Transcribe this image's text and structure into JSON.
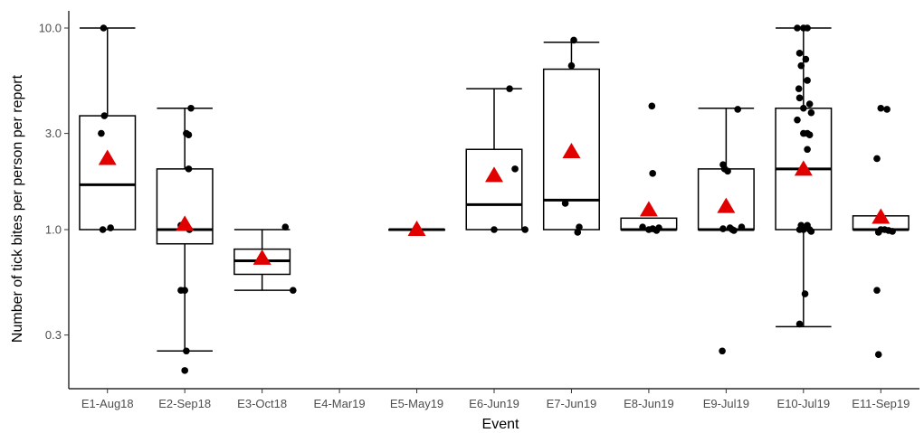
{
  "chart_data": {
    "type": "box",
    "xlabel": "Event",
    "ylabel": "Number of tick bites per person per report",
    "y_scale": "log10",
    "ylim": [
      0.2,
      12
    ],
    "y_ticks": [
      0.3,
      1.0,
      3.0,
      10.0
    ],
    "y_tick_labels": [
      "0.3",
      "1.0",
      "3.0",
      "10.0"
    ],
    "grid": false,
    "colors": {
      "box": "#000000",
      "points": "#000000",
      "mean_marker": "#e00000"
    },
    "categories": [
      "E1-Aug18",
      "E2-Sep18",
      "E3-Oct18",
      "E4-Mar19",
      "E5-May19",
      "E6-Jun19",
      "E7-Jun19",
      "E8-Jun19",
      "E9-Jul19",
      "E10-Jul19",
      "E11-Sep19"
    ],
    "boxes": [
      {
        "category": "E1-Aug18",
        "whisker_low": 1.0,
        "q1": 1.0,
        "median": 1.67,
        "q3": 3.67,
        "whisker_high": 10.0,
        "mean": 2.25,
        "points": [
          [
            -0.05,
            10.0
          ],
          [
            -0.04,
            3.67
          ],
          [
            -0.08,
            3.0
          ],
          [
            -0.06,
            1.0
          ],
          [
            0.04,
            1.02
          ]
        ]
      },
      {
        "category": "E2-Sep18",
        "whisker_low": 0.25,
        "q1": 0.85,
        "median": 1.0,
        "q3": 2.0,
        "whisker_high": 4.0,
        "mean": 1.06,
        "points": [
          [
            0.08,
            4.0
          ],
          [
            0.02,
            3.0
          ],
          [
            0.05,
            2.95
          ],
          [
            0.05,
            2.0
          ],
          [
            -0.05,
            1.05
          ],
          [
            0.02,
            1.05
          ],
          [
            0.06,
            1.0
          ],
          [
            -0.05,
            0.5
          ],
          [
            0.0,
            0.5
          ],
          [
            0.02,
            0.25
          ],
          [
            0.0,
            0.2
          ]
        ]
      },
      {
        "category": "E3-Oct18",
        "whisker_low": 0.5,
        "q1": 0.6,
        "median": 0.7,
        "q3": 0.8,
        "whisker_high": 1.0,
        "mean": 0.72,
        "points": [
          [
            0.3,
            1.03
          ],
          [
            0.4,
            0.5
          ]
        ]
      },
      {
        "category": "E4-Mar19"
      },
      {
        "category": "E5-May19",
        "whisker_low": 1.0,
        "q1": 1.0,
        "median": 1.0,
        "q3": 1.0,
        "whisker_high": 1.0,
        "mean": 1.0,
        "points": []
      },
      {
        "category": "E6-Jun19",
        "whisker_low": 1.0,
        "q1": 1.0,
        "median": 1.33,
        "q3": 2.5,
        "whisker_high": 5.0,
        "mean": 1.85,
        "points": [
          [
            0.2,
            5.0
          ],
          [
            0.27,
            2.0
          ],
          [
            0.0,
            1.0
          ],
          [
            0.4,
            1.0
          ]
        ]
      },
      {
        "category": "E7-Jun19",
        "whisker_low": 1.0,
        "q1": 1.0,
        "median": 1.4,
        "q3": 6.25,
        "whisker_high": 8.5,
        "mean": 2.43,
        "points": [
          [
            0.03,
            8.7
          ],
          [
            0.0,
            6.5
          ],
          [
            -0.08,
            1.35
          ],
          [
            0.1,
            1.03
          ],
          [
            0.08,
            0.97
          ]
        ]
      },
      {
        "category": "E8-Jun19",
        "whisker_low": 1.0,
        "q1": 1.0,
        "median": 1.0,
        "q3": 1.14,
        "whisker_high": 1.14,
        "mean": 1.25,
        "points": [
          [
            0.04,
            4.1
          ],
          [
            0.05,
            1.9
          ],
          [
            -0.08,
            1.03
          ],
          [
            0.0,
            1.0
          ],
          [
            0.05,
            1.01
          ],
          [
            0.1,
            0.99
          ],
          [
            0.13,
            1.02
          ]
        ]
      },
      {
        "category": "E9-Jul19",
        "whisker_low": 1.0,
        "q1": 1.0,
        "median": 1.0,
        "q3": 2.0,
        "whisker_high": 4.0,
        "mean": 1.3,
        "points": [
          [
            0.15,
            3.95
          ],
          [
            -0.04,
            2.1
          ],
          [
            -0.02,
            2.0
          ],
          [
            0.02,
            1.95
          ],
          [
            0.05,
            1.02
          ],
          [
            0.1,
            0.99
          ],
          [
            0.2,
            1.03
          ],
          [
            -0.04,
            1.01
          ],
          [
            0.08,
            1.0
          ],
          [
            -0.05,
            0.25
          ]
        ]
      },
      {
        "category": "E10-Jul19",
        "whisker_low": 0.33,
        "q1": 1.0,
        "median": 2.0,
        "q3": 4.0,
        "whisker_high": 10.0,
        "mean": 1.99,
        "points": [
          [
            -0.08,
            10.0
          ],
          [
            0.0,
            10.0
          ],
          [
            0.05,
            10.0
          ],
          [
            -0.05,
            7.5
          ],
          [
            0.03,
            7.0
          ],
          [
            -0.03,
            6.5
          ],
          [
            0.05,
            5.5
          ],
          [
            -0.06,
            5.0
          ],
          [
            -0.05,
            4.5
          ],
          [
            0.08,
            4.2
          ],
          [
            0.0,
            4.0
          ],
          [
            0.1,
            3.8
          ],
          [
            -0.08,
            3.5
          ],
          [
            0.0,
            3.0
          ],
          [
            0.05,
            3.0
          ],
          [
            0.08,
            2.95
          ],
          [
            0.0,
            2.0
          ],
          [
            0.05,
            2.5
          ],
          [
            -0.03,
            1.05
          ],
          [
            0.05,
            1.05
          ],
          [
            0.0,
            1.0
          ],
          [
            0.08,
            1.0
          ],
          [
            -0.05,
            1.0
          ],
          [
            0.1,
            0.98
          ],
          [
            0.02,
            0.48
          ],
          [
            -0.05,
            0.34
          ]
        ]
      },
      {
        "category": "E11-Sep19",
        "whisker_low": 1.0,
        "q1": 1.0,
        "median": 1.0,
        "q3": 1.17,
        "whisker_high": 1.17,
        "mean": 1.15,
        "points": [
          [
            0.0,
            4.0
          ],
          [
            0.08,
            3.95
          ],
          [
            -0.05,
            2.25
          ],
          [
            0.0,
            1.0
          ],
          [
            0.05,
            1.0
          ],
          [
            0.1,
            0.99
          ],
          [
            0.15,
            0.98
          ],
          [
            -0.03,
            0.97
          ],
          [
            -0.05,
            0.5
          ],
          [
            -0.03,
            0.24
          ]
        ]
      }
    ]
  }
}
